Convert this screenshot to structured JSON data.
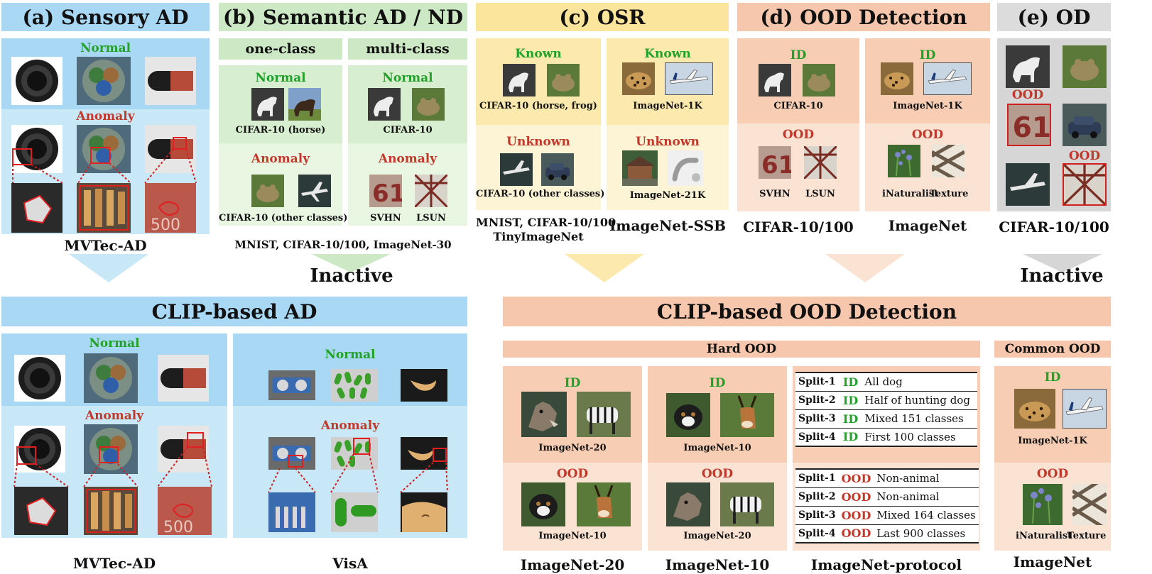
{
  "top": {
    "sensory_ad": {
      "header": "(a) Sensory AD",
      "normal": "Normal",
      "anomaly": "Anomaly",
      "dataset": "MVTec-AD"
    },
    "semantic_ad": {
      "header": "(b) Semantic AD / ND",
      "one_class": "one-class",
      "multi_class": "multi-class",
      "normal_left": "Normal",
      "normal_right": "Normal",
      "anomaly_left": "Anomaly",
      "anomaly_right": "Anomaly",
      "cap_normal_left": "CIFAR-10 (horse)",
      "cap_normal_right": "CIFAR-10",
      "cap_anomaly_left": "CIFAR-10 (other classes)",
      "cap_svhn": "SVHN",
      "cap_lsun": "LSUN",
      "datasets": "MNIST, CIFAR-10/100, ImageNet-30",
      "inactive": "Inactive"
    },
    "osr": {
      "header": "(c) OSR",
      "known_left": "Known",
      "known_right": "Known",
      "unknown_left": "Unknown",
      "unknown_right": "Unknown",
      "cap_known_left": "CIFAR-10 (horse, frog)",
      "cap_known_right": "ImageNet-1K",
      "cap_unknown_left": "CIFAR-10 (other classes)",
      "cap_unknown_right": "ImageNet-21K",
      "datasets_left_1": "MNIST, CIFAR-10/100",
      "datasets_left_2": "TinyImageNet",
      "datasets_right": "ImageNet-SSB"
    },
    "ood": {
      "header": "(d) OOD Detection",
      "id_left": "ID",
      "id_right": "ID",
      "ood_left": "OOD",
      "ood_right": "OOD",
      "cap_id_left": "CIFAR-10",
      "cap_id_right": "ImageNet-1K",
      "cap_svhn": "SVHN",
      "cap_lsun": "LSUN",
      "cap_inat": "iNaturalist",
      "cap_texture": "Texture",
      "dataset_left": "CIFAR-10/100",
      "dataset_right": "ImageNet"
    },
    "od": {
      "header": "(e) OD",
      "ood_1": "OOD",
      "ood_2": "OOD",
      "dataset": "CIFAR-10/100",
      "inactive": "Inactive"
    }
  },
  "bottom": {
    "clip_ad": {
      "header": "CLIP-based AD",
      "normal_left": "Normal",
      "normal_right": "Normal",
      "anomaly_left": "Anomaly",
      "anomaly_right": "Anomaly",
      "dataset_left": "MVTec-AD",
      "dataset_right": "VisA"
    },
    "clip_ood": {
      "header": "CLIP-based OOD Detection",
      "hard_ood": "Hard OOD",
      "common_ood": "Common OOD",
      "id_1": "ID",
      "id_2": "ID",
      "id_3": "ID",
      "ood_1": "OOD",
      "ood_2": "OOD",
      "ood_3": "OOD",
      "cap_in20_top": "ImageNet-20",
      "cap_in10_top": "ImageNet-10",
      "cap_in10_bottom": "ImageNet-10",
      "cap_in20_bottom": "ImageNet-20",
      "cap_in1k": "ImageNet-1K",
      "cap_inat": "iNaturalist",
      "cap_texture": "Texture",
      "dataset_in20": "ImageNet-20",
      "dataset_in10": "ImageNet-10",
      "dataset_protocol": "ImageNet-protocol",
      "dataset_imagenet": "ImageNet",
      "id_splits": [
        {
          "split": "Split-1",
          "tag": "ID",
          "desc": "All dog"
        },
        {
          "split": "Split-2",
          "tag": "ID",
          "desc": "Half of hunting dog"
        },
        {
          "split": "Split-3",
          "tag": "ID",
          "desc": "Mixed 151 classes"
        },
        {
          "split": "Split-4",
          "tag": "ID",
          "desc": "First 100 classes"
        }
      ],
      "ood_splits": [
        {
          "split": "Split-1",
          "tag": "OOD",
          "desc": "Non-animal"
        },
        {
          "split": "Split-2",
          "tag": "OOD",
          "desc": "Non-animal"
        },
        {
          "split": "Split-3",
          "tag": "OOD",
          "desc": "Mixed 164 classes"
        },
        {
          "split": "Split-4",
          "tag": "OOD",
          "desc": "Last 900 classes"
        }
      ]
    }
  },
  "colors": {
    "blue_header": "#a9d8f5",
    "blue_panel": "#c8e8f8",
    "blue_light": "#dff2fb",
    "green_header": "#cde8c4",
    "green_panel": "#d8eed0",
    "green_light": "#e8f6e2",
    "yellow_header": "#fbe49b",
    "yellow_panel": "#fce9ad",
    "yellow_light": "#fdf3d5",
    "orange_header": "#f6c7ac",
    "orange_panel": "#f7cdb3",
    "orange_light": "#fbe3d4",
    "gray_header": "#dcdcdc",
    "gray_panel": "#d6d6d6",
    "normal_green": "#22a229",
    "anomaly_red": "#c0392b"
  }
}
